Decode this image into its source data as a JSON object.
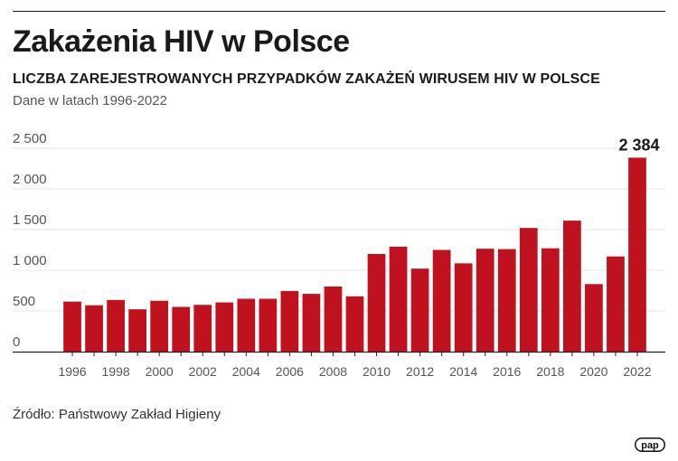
{
  "header": {
    "title": "Zakażenia HIV w Polsce",
    "subtitle": "LICZBA ZAREJESTROWANYCH PRZYPADKÓW ZAKAŻEŃ WIRUSEM HIV W POLSCE",
    "note": "Dane w latach 1996-2022"
  },
  "footer": {
    "source": "Źródło: Państwowy Zakład Higieny",
    "logo_text": "pap"
  },
  "colors": {
    "bar": "#c0111f",
    "grid": "#e6e6e6",
    "axis": "#222222",
    "text": "#1a1a1a",
    "tick_text": "#555555"
  },
  "chart_data": {
    "type": "bar",
    "title": "",
    "xlabel": "",
    "ylabel": "",
    "ylim": [
      0,
      2500
    ],
    "yticks": [
      0,
      500,
      1000,
      1500,
      2000,
      2500
    ],
    "ytick_labels": [
      "0",
      "500",
      "1 000",
      "1 500",
      "2 000",
      "2 500"
    ],
    "grid": true,
    "categories": [
      "1996",
      "1997",
      "1998",
      "1999",
      "2000",
      "2001",
      "2002",
      "2003",
      "2004",
      "2005",
      "2006",
      "2007",
      "2008",
      "2009",
      "2010",
      "2011",
      "2012",
      "2013",
      "2014",
      "2015",
      "2016",
      "2017",
      "2018",
      "2019",
      "2020",
      "2021",
      "2022"
    ],
    "xtick_labels": [
      "1996",
      "1998",
      "2000",
      "2002",
      "2004",
      "2006",
      "2008",
      "2010",
      "2012",
      "2014",
      "2016",
      "2018",
      "2020",
      "2022"
    ],
    "values": [
      615,
      570,
      635,
      520,
      625,
      550,
      575,
      605,
      650,
      650,
      745,
      710,
      800,
      680,
      1200,
      1290,
      1020,
      1250,
      1085,
      1265,
      1260,
      1520,
      1270,
      1610,
      830,
      1170,
      2384
    ],
    "data_labels": [
      {
        "category": "2022",
        "text": "2 384"
      }
    ]
  }
}
